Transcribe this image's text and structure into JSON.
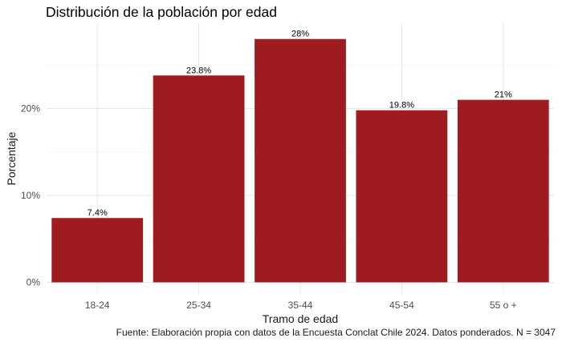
{
  "chart_data": {
    "type": "bar",
    "title": "Distribución de la población por edad",
    "xlabel": "Tramo de edad",
    "ylabel": "Porcentaje",
    "caption": "Fuente: Elaboración propia con datos de la Encuesta Conclat Chile 2024. Datos ponderados. N = 3047",
    "categories": [
      "18-24",
      "25-34",
      "35-44",
      "45-54",
      "55 o +"
    ],
    "values": [
      7.4,
      23.8,
      28,
      19.8,
      21
    ],
    "value_labels": [
      "7.4%",
      "23.8%",
      "28%",
      "19.8%",
      "21%"
    ],
    "y_ticks": [
      0,
      10,
      20
    ],
    "y_tick_labels": [
      "0%",
      "10%",
      "20%"
    ],
    "ylim": [
      0,
      30
    ],
    "grid": true,
    "legend": "none",
    "bar_color": "#9e1b1f"
  }
}
